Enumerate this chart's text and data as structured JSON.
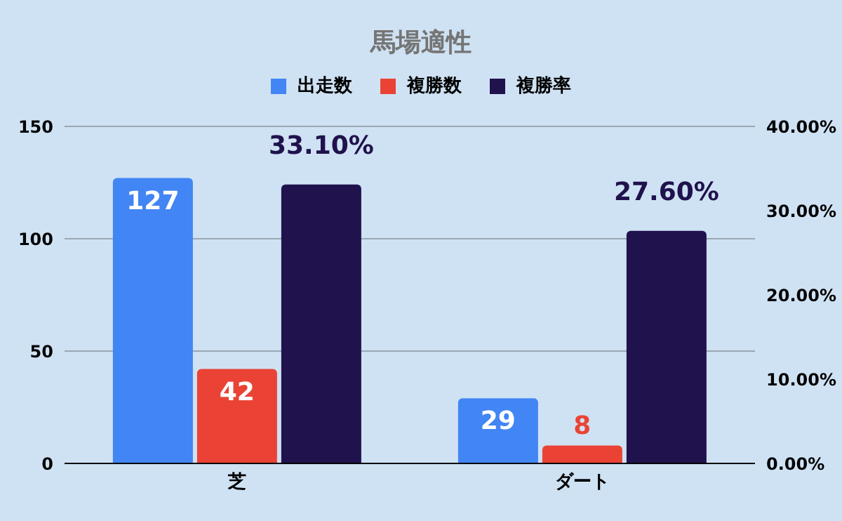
{
  "chart_data": {
    "type": "bar",
    "title": "馬場適性",
    "categories": [
      "芝",
      "ダート"
    ],
    "series": [
      {
        "name": "出走数",
        "color": "#4285f4",
        "values": [
          127,
          29
        ],
        "value_labels": [
          "127",
          "29"
        ]
      },
      {
        "name": "複勝数",
        "color": "#ea4335",
        "values": [
          42,
          8
        ],
        "value_labels": [
          "42",
          "8"
        ]
      },
      {
        "name": "複勝率",
        "color": "#20124d",
        "values": [
          33.1,
          27.6
        ],
        "axis": "y2",
        "value_labels": [
          "33.10%",
          "27.60%"
        ]
      }
    ],
    "ylim": [
      0,
      150
    ],
    "yticks": [
      0,
      50,
      100,
      150
    ],
    "y2lim": [
      0,
      40
    ],
    "y2ticks": [
      {
        "value": 0,
        "label": "0.00%"
      },
      {
        "value": 10,
        "label": "10.00%"
      },
      {
        "value": 20,
        "label": "20.00%"
      },
      {
        "value": 30,
        "label": "30.00%"
      },
      {
        "value": 40,
        "label": "40.00%"
      }
    ],
    "grid": "y",
    "legend": "top"
  }
}
